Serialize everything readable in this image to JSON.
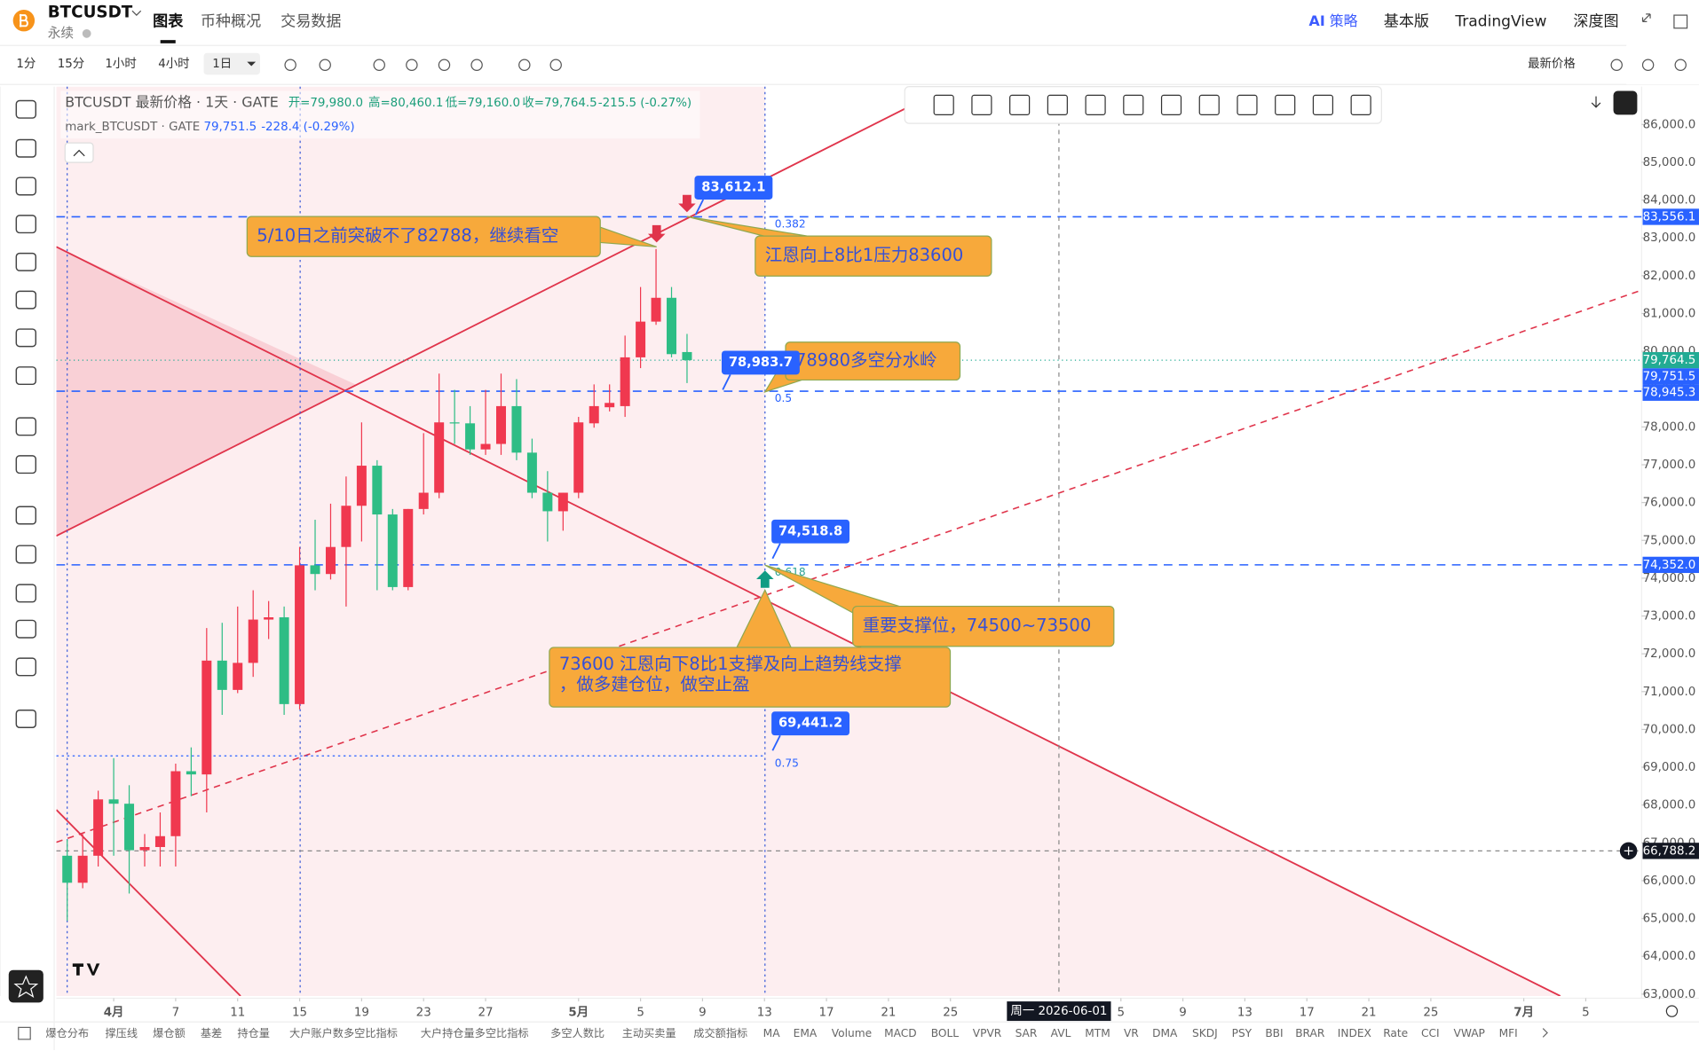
{
  "header": {
    "symbol": "BTCUSDT",
    "contract": "永续",
    "tabs": [
      "图表",
      "币种概况",
      "交易数据"
    ],
    "ai": "AI",
    "strategy": "策略",
    "links": [
      "基本版",
      "TradingView",
      "深度图"
    ]
  },
  "toolbar": {
    "intervals": [
      "1分",
      "15分",
      "1小时",
      "4小时",
      "1日"
    ],
    "price_source": "最新价格"
  },
  "indicators": [
    "爆仓分布",
    "撑压线",
    "爆仓额",
    "基差",
    "持仓量",
    "大户账户数多空比指标",
    "大户持仓量多空比指标",
    "多空人数比",
    "主动买卖量",
    "成交额指标",
    "MA",
    "EMA",
    "Volume",
    "MACD",
    "BOLL",
    "VPVR",
    "SAR",
    "AVL",
    "MTM",
    "VR",
    "DMA",
    "SKDJ",
    "PSY",
    "BBI",
    "BRAR",
    "INDEX",
    "Rate",
    "CCI",
    "VWAP",
    "MFI"
  ],
  "chart_data": {
    "type": "candlestick",
    "legend": {
      "title": "BTCUSDT 最新价格 · 1天 · GATE",
      "open": "开=79,980.0",
      "high": "高=80,460.1",
      "low": "低=79,160.0",
      "close": "收=79,764.5",
      "change": "-215.5 (-0.27%)",
      "mark_title": "mark_BTCUSDT · GATE",
      "mark_price": "79,751.5",
      "mark_change": "-228.4 (-0.29%)"
    },
    "up_color": "#f0384f",
    "down_color": "#2ebd85",
    "x": [
      0,
      1,
      2,
      3,
      4,
      5,
      6,
      7,
      8,
      9,
      10,
      11,
      12,
      13,
      14,
      15,
      16,
      17,
      18,
      19,
      20,
      21,
      22,
      23,
      24,
      25,
      26,
      27,
      28,
      29,
      30,
      31,
      32,
      33,
      34,
      35,
      36,
      37,
      38,
      39,
      40
    ],
    "open": [
      66660,
      65945,
      66660,
      68150,
      68035,
      66805,
      66890,
      67177,
      68895,
      68810,
      71820,
      71045,
      71760,
      72905,
      72965,
      70670,
      74340,
      74110,
      74825,
      75915,
      76975,
      75685,
      73765,
      75830,
      76260,
      78120,
      78095,
      77405,
      77550,
      78550,
      77320,
      76260,
      75770,
      76260,
      78095,
      78520,
      78550,
      79840,
      80785,
      81415,
      79980
    ],
    "high": [
      67090,
      67234,
      68380,
      69240,
      68525,
      67234,
      67805,
      69095,
      69525,
      72680,
      72820,
      73250,
      73680,
      73395,
      73250,
      74825,
      75545,
      75970,
      76690,
      78120,
      77120,
      75830,
      75830,
      77835,
      79410,
      78980,
      78550,
      78980,
      79410,
      79265,
      77690,
      76830,
      76260,
      78265,
      79125,
      79125,
      80415,
      81700,
      82705,
      81700,
      80460.1
    ],
    "low": [
      64940,
      65800,
      66375,
      66660,
      65660,
      66375,
      66375,
      66375,
      68235,
      67805,
      70385,
      70960,
      71390,
      72390,
      70385,
      70530,
      73680,
      73965,
      73250,
      74970,
      73680,
      73680,
      73680,
      75685,
      76115,
      77550,
      77260,
      77260,
      77260,
      77120,
      76115,
      74970,
      75255,
      76115,
      77980,
      78410,
      78265,
      79555,
      80700,
      79840,
      79160
    ],
    "close": [
      65945,
      66660,
      68150,
      68035,
      66805,
      66890,
      67177,
      68895,
      68810,
      71820,
      71045,
      71760,
      72905,
      72965,
      70670,
      74340,
      74110,
      74825,
      75915,
      76975,
      75685,
      73765,
      75830,
      76260,
      78120,
      78095,
      77405,
      77550,
      78550,
      77320,
      76260,
      75770,
      76260,
      78120,
      78550,
      78635,
      79840,
      80785,
      81415,
      79925,
      79764.5
    ],
    "xlim": [
      -0.7,
      101.6
    ],
    "xticks": [
      {
        "value": 3,
        "label": "4月"
      },
      7,
      11,
      15,
      19,
      23,
      27,
      {
        "value": 33,
        "label": "5月"
      },
      {
        "value": 37,
        "label": "5"
      },
      {
        "value": 41,
        "label": "9"
      },
      {
        "value": 45,
        "label": "13"
      },
      {
        "value": 49,
        "label": "17"
      },
      {
        "value": 53,
        "label": "21"
      },
      {
        "value": 57,
        "label": "25"
      },
      {
        "value": 68,
        "label": "5"
      },
      {
        "value": 72,
        "label": "9"
      },
      {
        "value": 76,
        "label": "13"
      },
      {
        "value": 80,
        "label": "17"
      },
      {
        "value": 84,
        "label": "21"
      },
      {
        "value": 88,
        "label": "25"
      },
      {
        "value": 94,
        "label": "7月"
      },
      {
        "value": 98,
        "label": "5"
      }
    ],
    "crosshair_x": {
      "value": 64,
      "label": "周一 2026-06-01"
    },
    "ylim": [
      62950,
      87000
    ],
    "yticks": [
      {
        "value": 63000,
        "label": "63,000.0"
      },
      {
        "value": 64000,
        "label": "64,000.0"
      },
      {
        "value": 65000,
        "label": "65,000.0"
      },
      {
        "value": 66000,
        "label": "66,000.0"
      },
      {
        "value": 67000,
        "label": "67,000.0"
      },
      {
        "value": 68000,
        "label": "68,000.0"
      },
      {
        "value": 69000,
        "label": "69,000.0"
      },
      {
        "value": 70000,
        "label": "70,000.0"
      },
      {
        "value": 71000,
        "label": "71,000.0"
      },
      {
        "value": 72000,
        "label": "72,000.0"
      },
      {
        "value": 73000,
        "label": "73,000.0"
      },
      {
        "value": 74000,
        "label": "74,000.0"
      },
      {
        "value": 75000,
        "label": "75,000.0"
      },
      {
        "value": 76000,
        "label": "76,000.0"
      },
      {
        "value": 77000,
        "label": "77,000.0"
      },
      {
        "value": 78000,
        "label": "78,000.0"
      },
      {
        "value": 79000,
        "label": "79,000.0"
      },
      {
        "value": 80000,
        "label": "80,000.0"
      },
      {
        "value": 81000,
        "label": "81,000.0"
      },
      {
        "value": 82000,
        "label": "82,000.0"
      },
      {
        "value": 83000,
        "label": "83,000.0"
      },
      {
        "value": 84000,
        "label": "84,000.0"
      },
      {
        "value": 85000,
        "label": "85,000.0"
      },
      {
        "value": 86000,
        "label": "86,000.0"
      }
    ],
    "axis_tags": [
      {
        "value": 83556.1,
        "label": "83,556.1",
        "color": "#2962ff"
      },
      {
        "value": 79764.5,
        "label": "79,764.5",
        "color": "#22ab94"
      },
      {
        "value": 79751.5,
        "label": "79,751.5",
        "color": "#2962ff"
      },
      {
        "value": 78945.3,
        "label": "78,945.3",
        "color": "#2962ff"
      },
      {
        "value": 74352.0,
        "label": "74,352.0",
        "color": "#2962ff"
      },
      {
        "value": 66788.2,
        "label": "66,788.2",
        "color": "#131722"
      }
    ],
    "fib_levels": [
      {
        "level": 0.382,
        "price": 83556.1
      },
      {
        "level": 0.5,
        "price": 78945.3
      },
      {
        "level": 0.618,
        "price": 74352.0
      },
      {
        "level": 0.75,
        "price": 69300
      }
    ],
    "price_callouts": [
      {
        "value": 83612.1,
        "label": "83,612.1"
      },
      {
        "value": 78983.7,
        "label": "78,983.7"
      },
      {
        "value": 74518.8,
        "label": "74,518.8"
      },
      {
        "value": 69441.2,
        "label": "69,441.2"
      }
    ],
    "annotations": [
      [
        "5/10日之前突破不了82788，继续看空"
      ],
      [
        "江恩向上8比1压力83600"
      ],
      [
        "78980多空分水岭"
      ],
      [
        "重要支撑位，74500~73500"
      ],
      [
        "73600 江恩向下8比1支撑及向上趋势线支撑",
        "，做多建仓位，做空止盈"
      ]
    ]
  }
}
